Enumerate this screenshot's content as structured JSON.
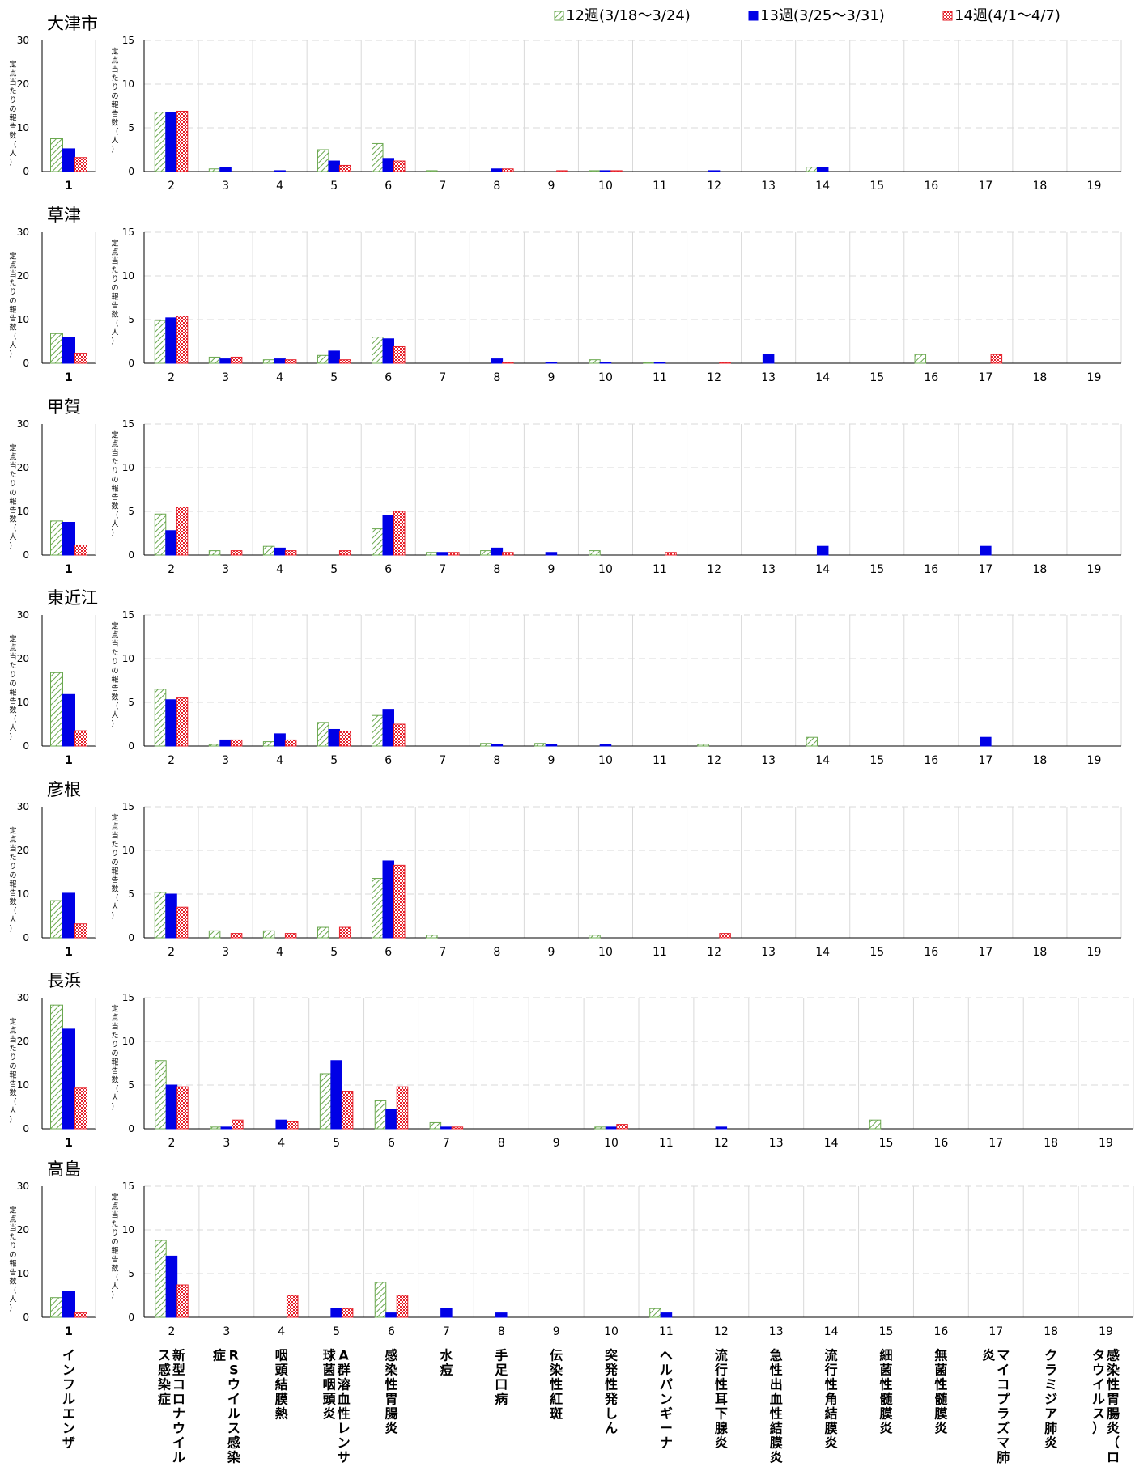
{
  "legend": [
    {
      "label": "12週(3/18〜3/24)",
      "pattern": "hatch-green"
    },
    {
      "label": "13週(3/25〜3/31)",
      "pattern": "solid-blue"
    },
    {
      "label": "14週(4/1〜4/7)",
      "pattern": "checker-red"
    }
  ],
  "colors": {
    "week12": "#6aa84f",
    "week13": "#0000e6",
    "week14": "#e6202a",
    "grid": "#d9d9d9",
    "axis": "#000000"
  },
  "y_axis_label": "定点当たりの報告数（人）",
  "small_axis": {
    "ticks": [
      0,
      10,
      20,
      30
    ],
    "max": 30,
    "category": "1"
  },
  "large_axis": {
    "ticks": [
      0,
      5,
      10,
      15
    ],
    "max": 15,
    "categories": [
      "2",
      "3",
      "4",
      "5",
      "6",
      "7",
      "8",
      "9",
      "10",
      "11",
      "12",
      "13",
      "14",
      "15",
      "16",
      "17",
      "18",
      "19"
    ]
  },
  "disease_names": [
    {
      "num": "1",
      "name": "インフルエンザ"
    },
    {
      "num": "2",
      "name": "新型コロナウイルス感染症"
    },
    {
      "num": "3",
      "name": "RSウイルス感染症"
    },
    {
      "num": "4",
      "name": "咽頭結膜熱"
    },
    {
      "num": "5",
      "name": "A群溶血性レンサ球菌咽頭炎"
    },
    {
      "num": "6",
      "name": "感染性胃腸炎"
    },
    {
      "num": "7",
      "name": "水痘"
    },
    {
      "num": "8",
      "name": "手足口病"
    },
    {
      "num": "9",
      "name": "伝染性紅斑"
    },
    {
      "num": "10",
      "name": "突発性発しん"
    },
    {
      "num": "11",
      "name": "ヘルパンギーナ"
    },
    {
      "num": "12",
      "name": "流行性耳下腺炎"
    },
    {
      "num": "13",
      "name": "急性出血性結膜炎"
    },
    {
      "num": "14",
      "name": "流行性角結膜炎"
    },
    {
      "num": "15",
      "name": "細菌性髄膜炎"
    },
    {
      "num": "16",
      "name": "無菌性髄膜炎"
    },
    {
      "num": "17",
      "name": "マイコプラズマ肺炎"
    },
    {
      "num": "18",
      "name": "クラミジア肺炎"
    },
    {
      "num": "19",
      "name": "感染性胃腸炎（ロタウイルス）"
    }
  ],
  "chart_data": [
    {
      "type": "bar",
      "title": "大津市",
      "series": [
        {
          "name": "12週(3/18〜3/24)",
          "values": [
            7.5,
            6.8,
            0.3,
            0,
            2.5,
            3.2,
            0.1,
            0,
            0,
            0.1,
            0,
            0,
            0,
            0.5,
            0,
            0,
            0,
            0,
            0
          ]
        },
        {
          "name": "13週(3/25〜3/31)",
          "values": [
            5.2,
            6.8,
            0.5,
            0.1,
            1.2,
            1.5,
            0,
            0.3,
            0,
            0.1,
            0,
            0.1,
            0,
            0.5,
            0,
            0,
            0,
            0,
            0
          ]
        },
        {
          "name": "14週(4/1〜4/7)",
          "values": [
            3.2,
            6.9,
            0,
            0,
            0.7,
            1.2,
            0,
            0.3,
            0.1,
            0.1,
            0,
            0,
            0,
            0,
            0,
            0,
            0,
            0,
            0
          ]
        }
      ]
    },
    {
      "type": "bar",
      "title": "草津",
      "series": [
        {
          "name": "12週(3/18〜3/24)",
          "values": [
            6.8,
            4.9,
            0.7,
            0.4,
            0.9,
            3.0,
            0,
            0,
            0,
            0.4,
            0.1,
            0,
            0,
            0,
            0,
            1.0,
            0,
            0,
            0
          ]
        },
        {
          "name": "13週(3/25〜3/31)",
          "values": [
            6.0,
            5.2,
            0.5,
            0.5,
            1.4,
            2.8,
            0,
            0.5,
            0.1,
            0.1,
            0.1,
            0,
            1.0,
            0,
            0,
            0,
            0,
            0,
            0
          ]
        },
        {
          "name": "14週(4/1〜4/7)",
          "values": [
            2.3,
            5.4,
            0.7,
            0.4,
            0.4,
            1.9,
            0,
            0.1,
            0,
            0,
            0,
            0.1,
            0,
            0,
            0,
            0,
            1.0,
            0,
            0
          ]
        }
      ]
    },
    {
      "type": "bar",
      "title": "甲賀",
      "series": [
        {
          "name": "12週(3/18〜3/24)",
          "values": [
            7.8,
            4.7,
            0.5,
            1.0,
            0,
            3.0,
            0.3,
            0.5,
            0,
            0.5,
            0,
            0,
            0,
            0,
            0,
            0,
            0,
            0,
            0
          ]
        },
        {
          "name": "13週(3/25〜3/31)",
          "values": [
            7.5,
            2.8,
            0,
            0.8,
            0,
            4.5,
            0.3,
            0.8,
            0.3,
            0,
            0,
            0,
            0,
            1.0,
            0,
            0,
            1.0,
            0,
            0
          ]
        },
        {
          "name": "14週(4/1〜4/7)",
          "values": [
            2.3,
            5.5,
            0.5,
            0.5,
            0.5,
            5.0,
            0.3,
            0.3,
            0,
            0,
            0.3,
            0,
            0,
            0,
            0,
            0,
            0,
            0,
            0
          ]
        }
      ]
    },
    {
      "type": "bar",
      "title": "東近江",
      "series": [
        {
          "name": "12週(3/18〜3/24)",
          "values": [
            16.8,
            6.5,
            0.2,
            0.5,
            2.7,
            3.5,
            0,
            0.3,
            0.3,
            0,
            0,
            0.2,
            0,
            1.0,
            0,
            0,
            0,
            0,
            0
          ]
        },
        {
          "name": "13週(3/25〜3/31)",
          "values": [
            11.8,
            5.3,
            0.7,
            1.4,
            1.9,
            4.2,
            0,
            0.2,
            0.2,
            0.2,
            0,
            0,
            0,
            0,
            0,
            0,
            1.0,
            0,
            0
          ]
        },
        {
          "name": "14週(4/1〜4/7)",
          "values": [
            3.5,
            5.5,
            0.7,
            0.7,
            1.7,
            2.5,
            0,
            0,
            0,
            0,
            0,
            0,
            0,
            0,
            0,
            0,
            0,
            0,
            0
          ]
        }
      ]
    },
    {
      "type": "bar",
      "title": "彦根",
      "series": [
        {
          "name": "12週(3/18〜3/24)",
          "values": [
            8.5,
            5.2,
            0.8,
            0.8,
            1.2,
            6.8,
            0.3,
            0,
            0,
            0.3,
            0,
            0,
            0,
            0,
            0,
            0,
            0,
            0,
            0
          ]
        },
        {
          "name": "13週(3/25〜3/31)",
          "values": [
            10.2,
            5.0,
            0,
            0,
            0,
            8.8,
            0,
            0,
            0,
            0,
            0,
            0,
            0,
            0,
            0,
            0,
            0,
            0,
            0
          ]
        },
        {
          "name": "14週(4/1〜4/7)",
          "values": [
            3.2,
            3.5,
            0.5,
            0.5,
            1.2,
            8.3,
            0,
            0,
            0,
            0,
            0,
            0.5,
            0,
            0,
            0,
            0,
            0,
            0,
            0
          ]
        }
      ]
    },
    {
      "type": "bar",
      "title": "長浜",
      "series": [
        {
          "name": "12週(3/18〜3/24)",
          "values": [
            28.3,
            7.8,
            0.2,
            0,
            6.3,
            3.2,
            0.7,
            0,
            0,
            0.2,
            0,
            0,
            0,
            0,
            1.0,
            0,
            0,
            0,
            0
          ]
        },
        {
          "name": "13週(3/25〜3/31)",
          "values": [
            22.8,
            5.0,
            0.2,
            1.0,
            7.8,
            2.2,
            0.2,
            0,
            0,
            0.2,
            0,
            0.2,
            0,
            0,
            0,
            0,
            0,
            0,
            0
          ]
        },
        {
          "name": "14週(4/1〜4/7)",
          "values": [
            9.3,
            4.8,
            1.0,
            0.8,
            4.3,
            4.8,
            0.2,
            0,
            0,
            0.5,
            0,
            0,
            0,
            0,
            0,
            0,
            0,
            0,
            0
          ]
        }
      ]
    },
    {
      "type": "bar",
      "title": "高島",
      "series": [
        {
          "name": "12週(3/18〜3/24)",
          "values": [
            4.5,
            8.8,
            0,
            0,
            0,
            4.0,
            0,
            0,
            0,
            0,
            1.0,
            0,
            0,
            0,
            0,
            0,
            0,
            0,
            0
          ]
        },
        {
          "name": "13週(3/25〜3/31)",
          "values": [
            6.0,
            7.0,
            0,
            0,
            1.0,
            0.5,
            1.0,
            0.5,
            0,
            0,
            0.5,
            0,
            0,
            0,
            0,
            0,
            0,
            0,
            0
          ]
        },
        {
          "name": "14週(4/1〜4/7)",
          "values": [
            1.0,
            3.7,
            0,
            2.5,
            1.0,
            2.5,
            0,
            0,
            0,
            0,
            0,
            0,
            0,
            0,
            0,
            0,
            0,
            0,
            0
          ]
        }
      ]
    }
  ]
}
